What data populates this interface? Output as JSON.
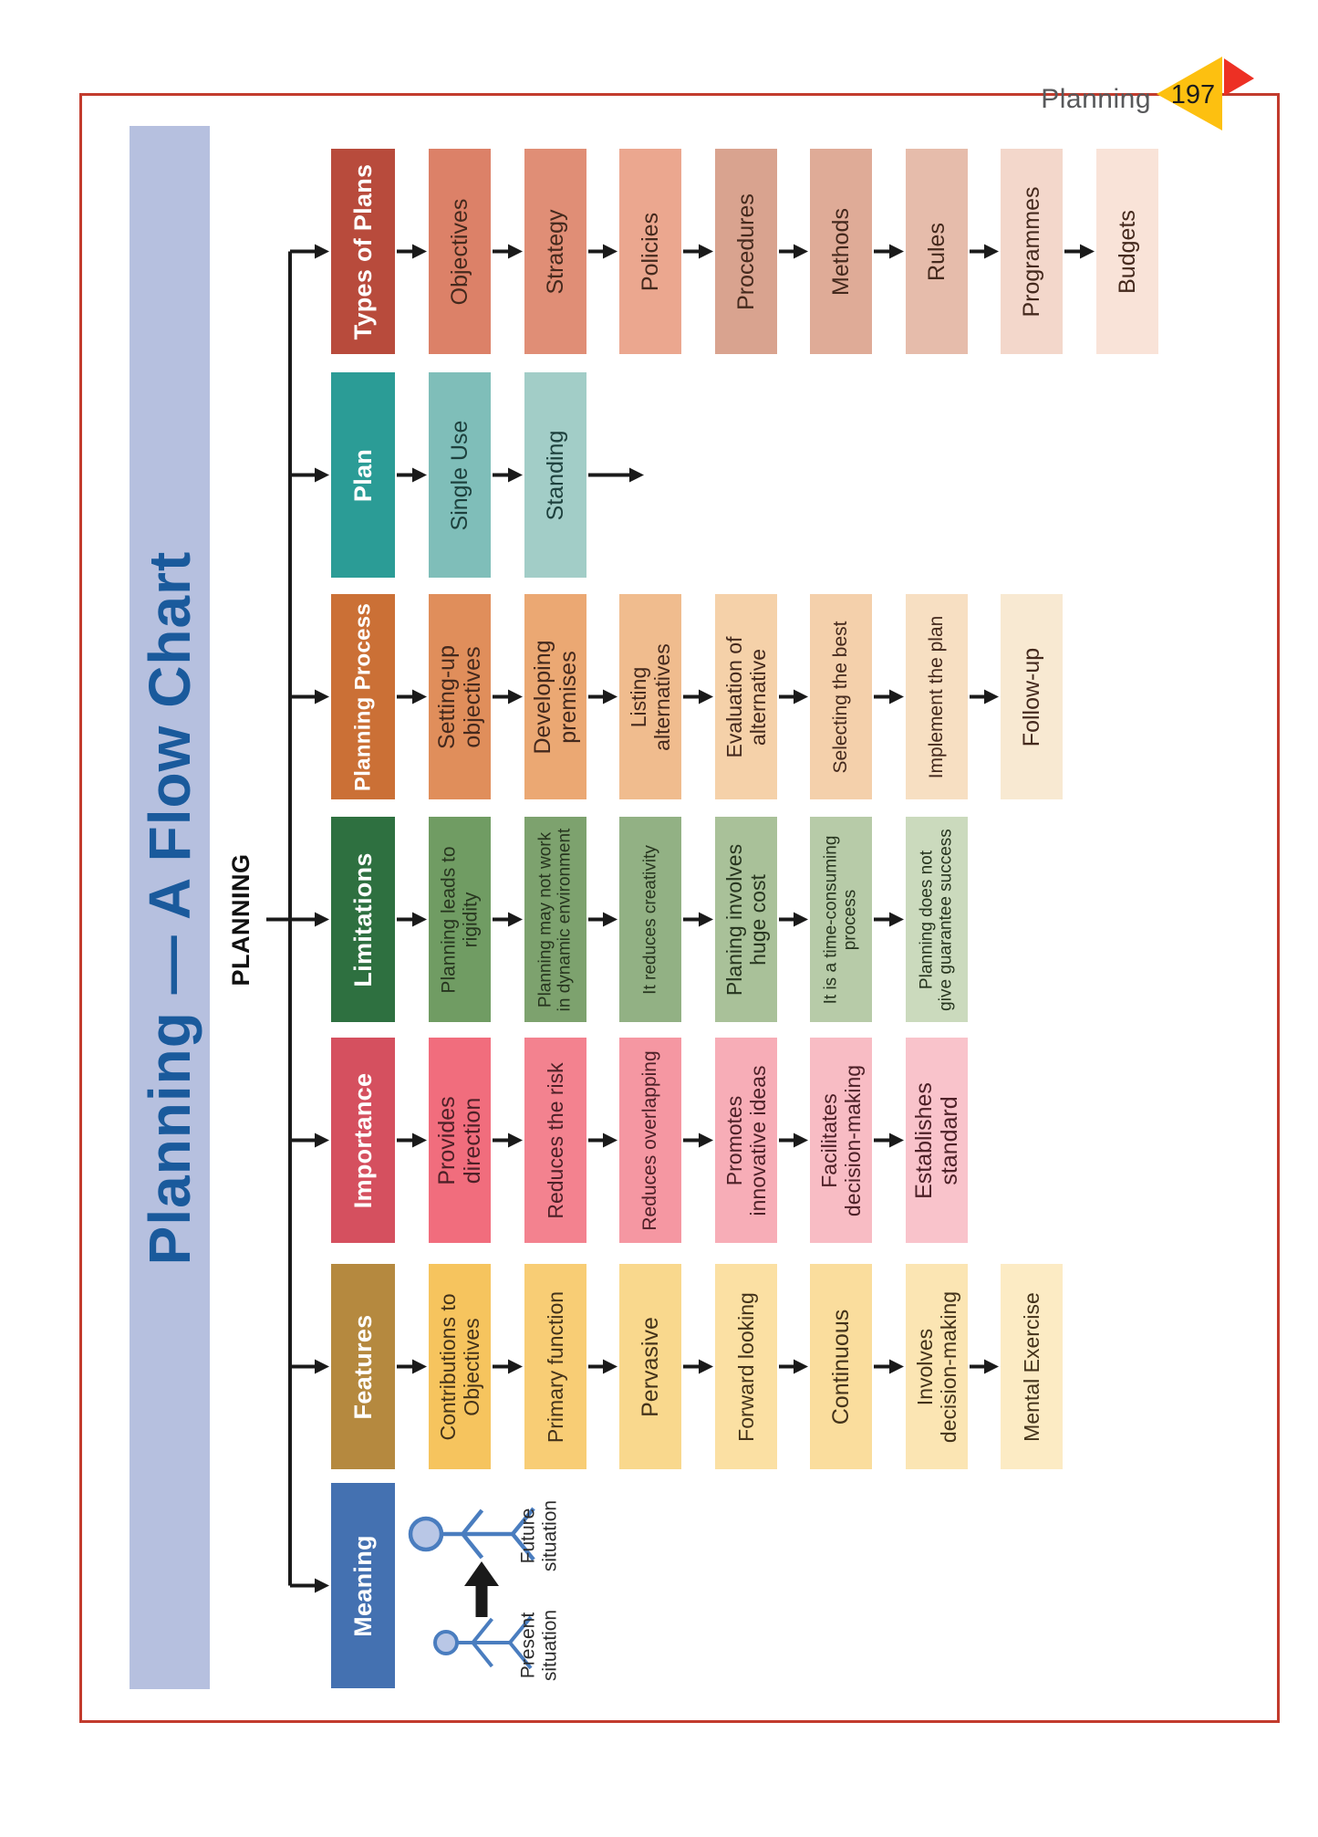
{
  "page": {
    "running_title": "Planning",
    "page_number": "197",
    "border_color": "#c23b2d",
    "flag_yellow": "#fdc010",
    "flag_red": "#ed3024"
  },
  "banner": {
    "title": "Planning — A Flow Chart",
    "bg": "#b6c0df",
    "text_color": "#1a5a9c"
  },
  "root_label": "PLANNING",
  "connector_color": "#1a1a1a",
  "categories": [
    {
      "key": "types-of-plans",
      "label": "Types of Plans",
      "header_bg": "#b84b3c",
      "text_color": "#44291d",
      "children": [
        {
          "label": "Objectives",
          "bg": "#dc8168"
        },
        {
          "label": "Strategy",
          "bg": "#e08e76"
        },
        {
          "label": "Policies",
          "bg": "#eba78f"
        },
        {
          "label": "Procedures",
          "bg": "#d9a38f"
        },
        {
          "label": "Methods",
          "bg": "#dfab97"
        },
        {
          "label": "Rules",
          "bg": "#e6bcab"
        },
        {
          "label": "Programmes",
          "bg": "#f3d7cb"
        },
        {
          "label": "Budgets",
          "bg": "#f9e3d8"
        }
      ]
    },
    {
      "key": "plan",
      "label": "Plan",
      "header_bg": "#2b9c96",
      "text_color": "#1d403d",
      "trailing_arrow": true,
      "children": [
        {
          "label": "Single Use",
          "bg": "#7fbeb9"
        },
        {
          "label": "Standing",
          "bg": "#a2cdc7"
        }
      ]
    },
    {
      "key": "planning-process",
      "label": "Planning Process",
      "header_bg": "#cb7036",
      "text_color": "#44291d",
      "children": [
        {
          "label": "Setting-up\nobjectives",
          "bg": "#e08e5b"
        },
        {
          "label": "Developing\npremises",
          "bg": "#eba873"
        },
        {
          "label": "Listing\nalternatives",
          "bg": "#f0bc8e"
        },
        {
          "label": "Evaluation of\nalternative",
          "bg": "#f5d1a9"
        },
        {
          "label": "Selecting the best",
          "bg": "#f4d0ab"
        },
        {
          "label": "Implement the plan",
          "bg": "#f7dfc2"
        },
        {
          "label": "Follow-up",
          "bg": "#f8e9d2"
        }
      ]
    },
    {
      "key": "limitations",
      "label": "Limitations",
      "header_bg": "#2e7040",
      "text_color": "#27351f",
      "root_feed": true,
      "children": [
        {
          "label": "Planning leads to\nrigidity",
          "bg": "#709c63"
        },
        {
          "label": "Planning may not work\nin dynamic environment",
          "bg": "#7da26e"
        },
        {
          "label": "It reduces creativity",
          "bg": "#92b184"
        },
        {
          "label": "Planing involves\nhuge cost",
          "bg": "#a9c199"
        },
        {
          "label": "It is a time-consuming\nprocess",
          "bg": "#b7cba8"
        },
        {
          "label": "Planning does not\ngive guarantee success",
          "bg": "#cbdabd"
        }
      ]
    },
    {
      "key": "importance",
      "label": "Importance",
      "header_bg": "#d5505f",
      "text_color": "#4d2027",
      "children": [
        {
          "label": "Provides\ndirection",
          "bg": "#f16d7d"
        },
        {
          "label": "Reduces the risk",
          "bg": "#f3828f"
        },
        {
          "label": "Reduces overlapping",
          "bg": "#f597a2"
        },
        {
          "label": "Promotes\ninnovative ideas",
          "bg": "#f7adb7"
        },
        {
          "label": "Facilitates\ndecision-making",
          "bg": "#f8bcc4"
        },
        {
          "label": "Establishes\nstandard",
          "bg": "#f9c3cb"
        }
      ]
    },
    {
      "key": "features",
      "label": "Features",
      "header_bg": "#b5893f",
      "text_color": "#43321a",
      "children": [
        {
          "label": "Contributions to\nObjectives",
          "bg": "#f6c45e"
        },
        {
          "label": "Primary function",
          "bg": "#f8cd75"
        },
        {
          "label": "Pervasive",
          "bg": "#f9d88d"
        },
        {
          "label": "Forward looking",
          "bg": "#fbe0a3"
        },
        {
          "label": "Continuous",
          "bg": "#fadd9d"
        },
        {
          "label": "Involves\ndecision-making",
          "bg": "#fbe5b3"
        },
        {
          "label": "Mental Exercise",
          "bg": "#fcebc4"
        }
      ]
    },
    {
      "key": "meaning",
      "label": "Meaning",
      "header_bg": "#4471b1",
      "text_color": "#2b2b2b",
      "children": []
    }
  ],
  "meaning_diagram": {
    "present_label": "Present\nsituation",
    "future_label": "Future\nsituation",
    "figure_color": "#4a7dbf",
    "head_fill": "#b9c7e6",
    "arrow_color": "#1a1a1a"
  }
}
